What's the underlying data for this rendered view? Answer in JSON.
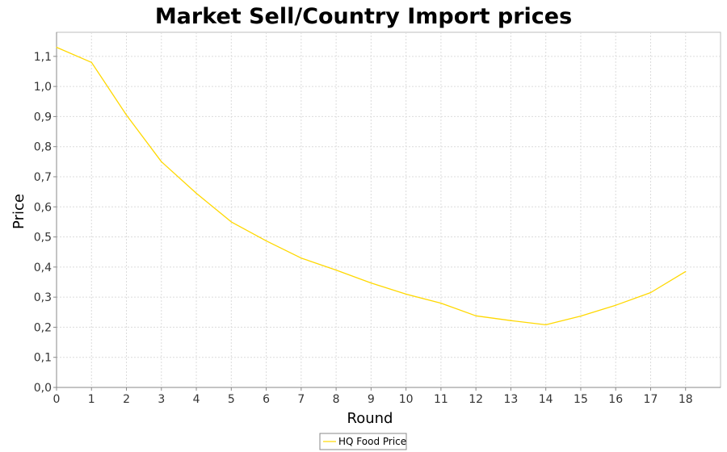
{
  "chart_data": {
    "type": "line",
    "title": "Market Sell/Country Import prices",
    "xlabel": "Round",
    "ylabel": "Price",
    "xlim": [
      0,
      19
    ],
    "ylim": [
      0,
      1.18
    ],
    "x_ticks": [
      "0",
      "1",
      "2",
      "3",
      "4",
      "5",
      "6",
      "7",
      "8",
      "9",
      "10",
      "11",
      "12",
      "13",
      "14",
      "15",
      "16",
      "17",
      "18"
    ],
    "y_ticks": [
      "0,0",
      "0,1",
      "0,2",
      "0,3",
      "0,4",
      "0,5",
      "0,6",
      "0,7",
      "0,8",
      "0,9",
      "1,0",
      "1,1"
    ],
    "grid": true,
    "legend_position": "bottom-center",
    "x": [
      0,
      1,
      2,
      3,
      4,
      5,
      6,
      7,
      8,
      9,
      10,
      11,
      12,
      13,
      14,
      15,
      16,
      17,
      18
    ],
    "series": [
      {
        "name": "HQ Food Price",
        "color": "#ffd800",
        "values": [
          1.13,
          1.08,
          0.905,
          0.75,
          0.645,
          0.55,
          0.487,
          0.43,
          0.39,
          0.347,
          0.31,
          0.28,
          0.238,
          0.222,
          0.208,
          0.237,
          0.273,
          0.315,
          0.385
        ]
      }
    ]
  }
}
